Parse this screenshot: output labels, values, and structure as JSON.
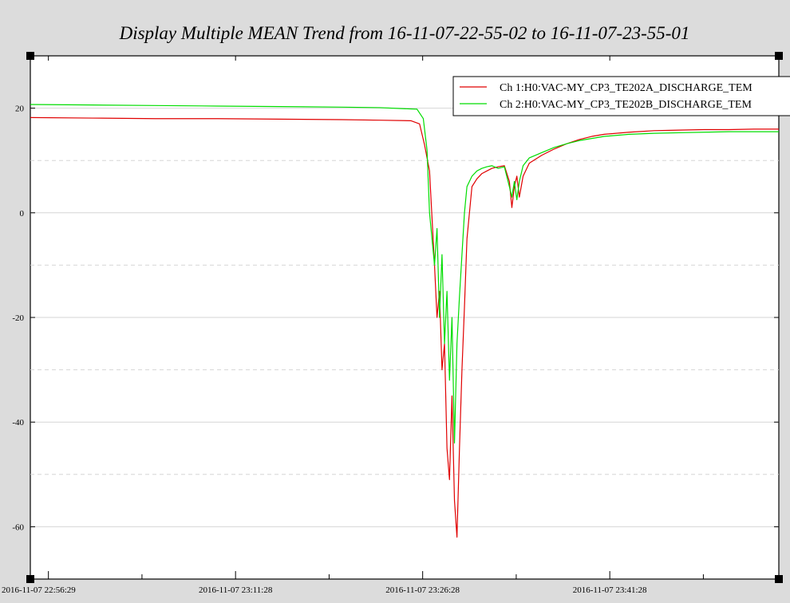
{
  "chart_data": {
    "type": "line",
    "title": "Display Multiple MEAN Trend from 16-11-07-22-55-02 to 16-11-07-23-55-01",
    "xlabel": "",
    "ylabel": "",
    "ylim": [
      -70,
      30
    ],
    "y_ticks": [
      20,
      0,
      -20,
      -40,
      -60
    ],
    "y_grid_minor": [
      10,
      -10,
      -30,
      -50
    ],
    "x_ticks": [
      {
        "t": 1.45,
        "label": "2016-11-07 22:56:29"
      },
      {
        "t": 16.45,
        "label": "2016-11-07 23:11:28"
      },
      {
        "t": 31.45,
        "label": "2016-11-07 23:26:28"
      },
      {
        "t": 46.45,
        "label": "2016-11-07 23:41:28"
      }
    ],
    "x_minor_ticks": [
      8.95,
      23.95,
      38.95,
      53.95
    ],
    "xlim": [
      0,
      60
    ],
    "legend": {
      "position": "top-right"
    },
    "grid": true,
    "series": [
      {
        "name": "Ch 1:H0:VAC-MY_CP3_TE202A_DISCHARGE_TEM",
        "color": "#e00000",
        "x": [
          0,
          5,
          10,
          15,
          20,
          25,
          28,
          30.5,
          31.2,
          31.6,
          32.0,
          32.4,
          32.6,
          32.8,
          33.0,
          33.2,
          33.4,
          33.6,
          33.8,
          34.0,
          34.2,
          34.4,
          34.6,
          34.8,
          35.0,
          35.4,
          35.8,
          36.2,
          36.6,
          37.0,
          37.5,
          38.0,
          38.4,
          38.6,
          38.8,
          39.0,
          39.2,
          39.5,
          40.0,
          41,
          42,
          43,
          44,
          45,
          46,
          48,
          50,
          52,
          54,
          56,
          58,
          60
        ],
        "y": [
          18.2,
          18.1,
          18.0,
          18.0,
          17.9,
          17.8,
          17.7,
          17.6,
          17.0,
          13.0,
          8.0,
          -10.0,
          -20.0,
          -15.0,
          -30.0,
          -25.0,
          -45.0,
          -51.0,
          -35.0,
          -55.0,
          -62.0,
          -45.0,
          -30.0,
          -18.0,
          -5.0,
          5.0,
          6.5,
          7.5,
          8.0,
          8.5,
          8.8,
          9.0,
          6.0,
          1.0,
          5.0,
          7.0,
          3.0,
          7.0,
          9.5,
          11.0,
          12.2,
          13.2,
          14.0,
          14.6,
          15.0,
          15.4,
          15.7,
          15.8,
          15.9,
          15.9,
          16.0,
          16.0
        ]
      },
      {
        "name": "Ch 2:H0:VAC-MY_CP3_TE202B_DISCHARGE_TEM",
        "color": "#00dd00",
        "x": [
          0,
          5,
          10,
          15,
          20,
          25,
          28,
          31.0,
          31.5,
          31.8,
          32.0,
          32.2,
          32.4,
          32.6,
          32.8,
          33.0,
          33.2,
          33.4,
          33.6,
          33.8,
          34.0,
          34.2,
          34.4,
          34.6,
          34.8,
          35.0,
          35.4,
          35.8,
          36.2,
          36.6,
          37.0,
          37.5,
          38.0,
          38.4,
          38.6,
          38.8,
          39.0,
          39.2,
          39.5,
          40.0,
          41,
          42,
          43,
          44,
          45,
          46,
          48,
          50,
          52,
          54,
          56,
          58,
          60
        ],
        "y": [
          20.7,
          20.6,
          20.5,
          20.4,
          20.3,
          20.2,
          20.1,
          19.8,
          18.0,
          12.0,
          0.0,
          -5.0,
          -10.0,
          -3.0,
          -20.0,
          -8.0,
          -25.0,
          -15.0,
          -32.0,
          -20.0,
          -44.0,
          -25.0,
          -16.0,
          -8.0,
          0.0,
          5.0,
          7.0,
          8.0,
          8.5,
          8.8,
          9.0,
          8.5,
          8.8,
          5.0,
          3.0,
          6.0,
          2.5,
          6.0,
          9.0,
          10.5,
          11.5,
          12.5,
          13.2,
          13.8,
          14.2,
          14.6,
          15.0,
          15.2,
          15.3,
          15.4,
          15.5,
          15.5,
          15.5
        ]
      }
    ]
  }
}
